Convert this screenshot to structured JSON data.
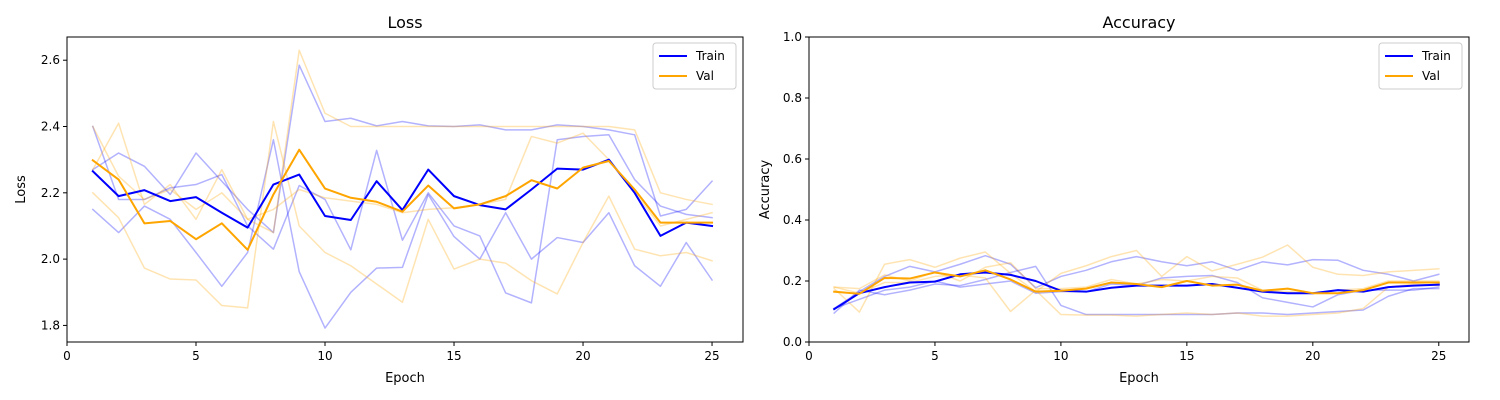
{
  "chart_data": [
    {
      "type": "line",
      "title": "Loss",
      "xlabel": "Epoch",
      "ylabel": "Loss",
      "xlim": [
        0,
        26.2
      ],
      "ylim": [
        1.75,
        2.67
      ],
      "xticks": [
        0,
        5,
        10,
        15,
        20,
        25
      ],
      "yticks": [
        1.8,
        2.0,
        2.2,
        2.4,
        2.6
      ],
      "ytick_labels": [
        "1.8",
        "2.0",
        "2.2",
        "2.4",
        "2.6"
      ],
      "legend_position": "top-right",
      "legend_entries": [
        "Train",
        "Val"
      ],
      "x": [
        1,
        2,
        3,
        4,
        5,
        6,
        7,
        8,
        9,
        10,
        11,
        12,
        13,
        14,
        15,
        16,
        17,
        18,
        19,
        20,
        21,
        22,
        23,
        24,
        25
      ],
      "series": [
        {
          "name": "Train",
          "color": "#0000ff",
          "width": 2,
          "alpha": 1,
          "values": [
            2.265,
            2.19,
            2.208,
            2.175,
            2.187,
            2.14,
            2.095,
            2.225,
            2.255,
            2.13,
            2.118,
            2.235,
            2.148,
            2.27,
            2.19,
            2.163,
            2.15,
            2.21,
            2.273,
            2.27,
            2.3,
            2.2,
            2.07,
            2.11,
            2.1
          ]
        },
        {
          "name": "Val",
          "color": "#ffa500",
          "width": 2,
          "alpha": 1,
          "values": [
            2.298,
            2.24,
            2.108,
            2.115,
            2.06,
            2.108,
            2.028,
            2.195,
            2.33,
            2.213,
            2.185,
            2.173,
            2.143,
            2.222,
            2.153,
            2.165,
            2.19,
            2.238,
            2.213,
            2.276,
            2.296,
            2.21,
            2.11,
            2.11,
            2.11
          ]
        },
        {
          "color": "#0000ff",
          "width": 1.5,
          "alpha": 0.3,
          "values": [
            2.15,
            2.08,
            2.16,
            2.12,
            2.02,
            1.918,
            2.02,
            2.36,
            1.962,
            1.792,
            1.9,
            1.973,
            1.975,
            2.195,
            2.068,
            2.0,
            2.14,
            2.0,
            2.065,
            2.05,
            2.14,
            1.98,
            1.918,
            2.05,
            1.937
          ]
        },
        {
          "color": "#0000ff",
          "width": 1.5,
          "alpha": 0.3,
          "values": [
            2.4,
            2.18,
            2.18,
            2.215,
            2.225,
            2.255,
            2.1,
            2.03,
            2.222,
            2.18,
            2.028,
            2.328,
            2.057,
            2.2,
            2.1,
            2.07,
            1.898,
            1.868,
            2.36,
            2.37,
            2.375,
            2.24,
            2.16,
            2.135,
            2.125
          ]
        },
        {
          "color": "#0000ff",
          "width": 1.5,
          "alpha": 0.3,
          "values": [
            2.27,
            2.32,
            2.28,
            2.195,
            2.32,
            2.235,
            2.15,
            2.08,
            2.585,
            2.415,
            2.425,
            2.402,
            2.415,
            2.402,
            2.4,
            2.405,
            2.39,
            2.39,
            2.405,
            2.4,
            2.39,
            2.375,
            2.13,
            2.15,
            2.235
          ]
        },
        {
          "color": "#ffa500",
          "width": 1.5,
          "alpha": 0.3,
          "values": [
            2.2,
            2.125,
            1.973,
            1.94,
            1.937,
            1.86,
            1.853,
            2.415,
            2.1,
            2.02,
            1.98,
            1.925,
            1.87,
            2.12,
            1.97,
            2.0,
            1.988,
            1.935,
            1.895,
            2.05,
            2.19,
            2.03,
            2.01,
            2.02,
            1.995
          ]
        },
        {
          "color": "#ffa500",
          "width": 1.5,
          "alpha": 0.3,
          "values": [
            2.4,
            2.25,
            2.18,
            2.21,
            2.15,
            2.2,
            2.12,
            2.08,
            2.63,
            2.44,
            2.4,
            2.4,
            2.4,
            2.4,
            2.4,
            2.4,
            2.4,
            2.4,
            2.4,
            2.4,
            2.4,
            2.39,
            2.2,
            2.18,
            2.165
          ]
        },
        {
          "color": "#ffa500",
          "width": 1.5,
          "alpha": 0.3,
          "values": [
            2.27,
            2.41,
            2.165,
            2.225,
            2.12,
            2.27,
            2.12,
            2.15,
            2.21,
            2.185,
            2.175,
            2.165,
            2.14,
            2.15,
            2.155,
            2.165,
            2.18,
            2.37,
            2.35,
            2.38,
            2.3,
            2.2,
            2.1,
            2.12,
            2.14
          ]
        }
      ]
    },
    {
      "type": "line",
      "title": "Accuracy",
      "xlabel": "Epoch",
      "ylabel": "Accuracy",
      "xlim": [
        0,
        26.2
      ],
      "ylim": [
        0,
        1
      ],
      "xticks": [
        0,
        5,
        10,
        15,
        20,
        25
      ],
      "yticks": [
        0,
        0.2,
        0.4,
        0.6,
        0.8,
        1.0
      ],
      "ytick_labels": [
        "0.0",
        "0.2",
        "0.4",
        "0.6",
        "0.8",
        "1.0"
      ],
      "legend_position": "top-right",
      "legend_entries": [
        "Train",
        "Val"
      ],
      "x": [
        1,
        2,
        3,
        4,
        5,
        6,
        7,
        8,
        9,
        10,
        11,
        12,
        13,
        14,
        15,
        16,
        17,
        18,
        19,
        20,
        21,
        22,
        23,
        24,
        25
      ],
      "series": [
        {
          "name": "Train",
          "color": "#0000ff",
          "width": 2,
          "alpha": 1,
          "values": [
            0.108,
            0.16,
            0.18,
            0.195,
            0.198,
            0.222,
            0.228,
            0.22,
            0.2,
            0.168,
            0.165,
            0.178,
            0.185,
            0.185,
            0.185,
            0.19,
            0.178,
            0.165,
            0.16,
            0.16,
            0.17,
            0.165,
            0.18,
            0.185,
            0.188
          ]
        },
        {
          "name": "Val",
          "color": "#ffa500",
          "width": 2,
          "alpha": 1,
          "values": [
            0.165,
            0.158,
            0.21,
            0.208,
            0.228,
            0.215,
            0.235,
            0.205,
            0.165,
            0.168,
            0.175,
            0.195,
            0.19,
            0.18,
            0.2,
            0.185,
            0.188,
            0.168,
            0.175,
            0.16,
            0.16,
            0.17,
            0.195,
            0.195,
            0.195
          ]
        },
        {
          "color": "#0000ff",
          "width": 1.5,
          "alpha": 0.3,
          "values": [
            0.095,
            0.17,
            0.155,
            0.17,
            0.19,
            0.185,
            0.205,
            0.228,
            0.248,
            0.12,
            0.09,
            0.09,
            0.09,
            0.09,
            0.09,
            0.09,
            0.095,
            0.095,
            0.09,
            0.095,
            0.1,
            0.105,
            0.15,
            0.175,
            0.175
          ]
        },
        {
          "color": "#0000ff",
          "width": 1.5,
          "alpha": 0.3,
          "values": [
            0.11,
            0.14,
            0.17,
            0.18,
            0.2,
            0.18,
            0.19,
            0.2,
            0.16,
            0.165,
            0.165,
            0.19,
            0.185,
            0.21,
            0.215,
            0.218,
            0.195,
            0.145,
            0.13,
            0.115,
            0.155,
            0.17,
            0.17,
            0.17,
            0.18
          ]
        },
        {
          "color": "#0000ff",
          "width": 1.5,
          "alpha": 0.3,
          "values": [
            0.11,
            0.165,
            0.215,
            0.248,
            0.23,
            0.255,
            0.283,
            0.255,
            0.178,
            0.215,
            0.235,
            0.263,
            0.28,
            0.263,
            0.25,
            0.263,
            0.235,
            0.263,
            0.253,
            0.27,
            0.268,
            0.235,
            0.222,
            0.2,
            0.222
          ]
        },
        {
          "color": "#ffa500",
          "width": 1.5,
          "alpha": 0.3,
          "values": [
            0.18,
            0.16,
            0.195,
            0.195,
            0.215,
            0.22,
            0.21,
            0.1,
            0.17,
            0.09,
            0.088,
            0.088,
            0.085,
            0.09,
            0.095,
            0.09,
            0.095,
            0.085,
            0.085,
            0.09,
            0.095,
            0.11,
            0.18,
            0.19,
            0.185
          ]
        },
        {
          "color": "#ffa500",
          "width": 1.5,
          "alpha": 0.3,
          "values": [
            0.175,
            0.098,
            0.255,
            0.27,
            0.245,
            0.275,
            0.295,
            0.225,
            0.165,
            0.225,
            0.25,
            0.28,
            0.3,
            0.215,
            0.28,
            0.233,
            0.255,
            0.278,
            0.318,
            0.245,
            0.222,
            0.218,
            0.23,
            0.235,
            0.24
          ]
        },
        {
          "color": "#ffa500",
          "width": 1.5,
          "alpha": 0.3,
          "values": [
            0.18,
            0.175,
            0.22,
            0.2,
            0.23,
            0.2,
            0.245,
            0.26,
            0.175,
            0.175,
            0.18,
            0.205,
            0.19,
            0.205,
            0.2,
            0.215,
            0.21,
            0.17,
            0.165,
            0.16,
            0.17,
            0.175,
            0.2,
            0.2,
            0.2
          ]
        }
      ]
    }
  ]
}
